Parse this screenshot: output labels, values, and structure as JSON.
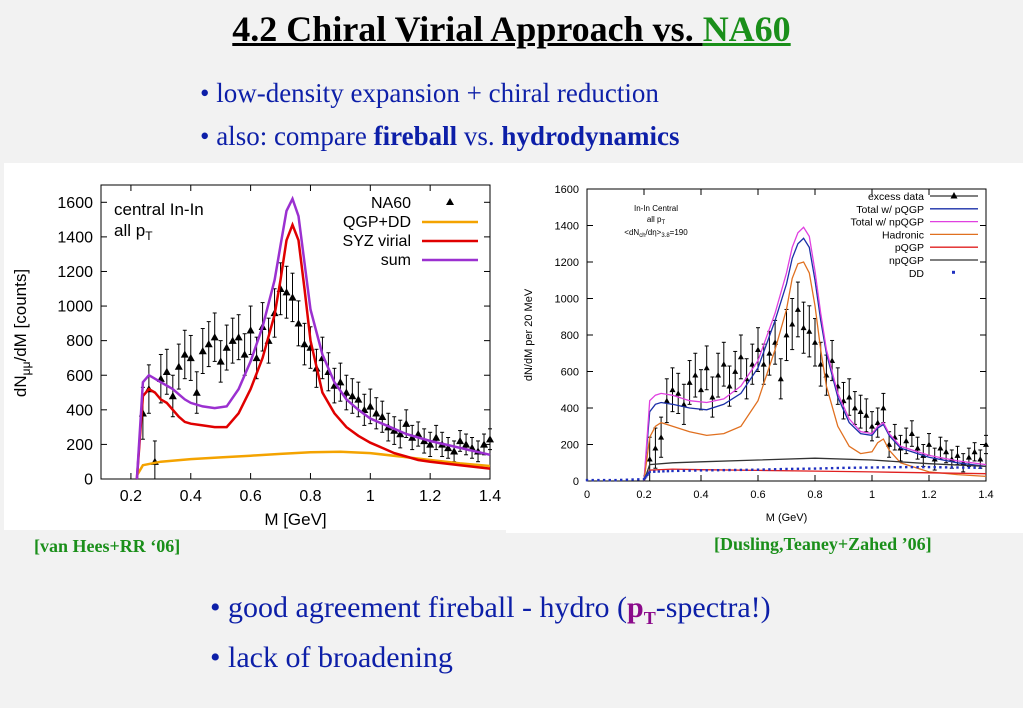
{
  "header": {
    "title_prefix": "4.2  Chiral Virial Approach vs. ",
    "title_highlight": "NA60",
    "bullet1": "• low-density expansion + chiral reduction",
    "bullet2_prefix": "• also: compare ",
    "bullet2_word1": "fireball",
    "bullet2_mid": " vs. ",
    "bullet2_word2": "hydrodynamics"
  },
  "footer": {
    "bullet1_prefix": "• good agreement fireball - hydro (",
    "bullet1_pt_p": "p",
    "bullet1_pt_sub": "T",
    "bullet1_suffix": "-spectra!)",
    "bullet2": "• lack of broadening"
  },
  "colors": {
    "na60": "#000000",
    "qgp_dd": "#f4a300",
    "syz_virial": "#e00000",
    "sum": "#9b30d0",
    "total_pqgp": "#1a2fa8",
    "total_npqgp": "#e040e0",
    "hadronic": "#e07020",
    "pqgp": "#e02020",
    "npqgp": "#333333",
    "dd": "#2030c0",
    "accent_green": "#1a8f1a",
    "bullet_blue": "#0d1fa8"
  },
  "chart_data": [
    {
      "type": "line",
      "citation": "[van Hees+RR ‘06]",
      "annotation_line1": "central In-In",
      "annotation_line2_prefix": "all p",
      "annotation_line2_sub": "T",
      "xlabel": "M [GeV]",
      "ylabel": "dN/dM [counts]",
      "ylabel_main": "dN",
      "ylabel_sub": "μμ",
      "ylabel_rest": "/dM [counts]",
      "xlim": [
        0.1,
        1.4
      ],
      "ylim": [
        0,
        1700
      ],
      "xticks": [
        0.2,
        0.4,
        0.6,
        0.8,
        1,
        1.2,
        1.4
      ],
      "xtick_labels": [
        "0.2",
        "0.4",
        "0.6",
        "0.8",
        "1",
        "1.2",
        "1.4"
      ],
      "yticks": [
        0,
        200,
        400,
        600,
        800,
        1000,
        1200,
        1400,
        1600
      ],
      "ytick_labels": [
        "0",
        "200",
        "400",
        "600",
        "800",
        "1000",
        "1200",
        "1400",
        "1600"
      ],
      "legend_position": "top-right",
      "series": [
        {
          "name": "NA60",
          "kind": "points",
          "x": [
            0.24,
            0.26,
            0.28,
            0.3,
            0.32,
            0.34,
            0.36,
            0.38,
            0.4,
            0.42,
            0.44,
            0.46,
            0.48,
            0.5,
            0.52,
            0.54,
            0.56,
            0.58,
            0.6,
            0.62,
            0.64,
            0.66,
            0.68,
            0.7,
            0.72,
            0.74,
            0.76,
            0.78,
            0.8,
            0.82,
            0.84,
            0.86,
            0.88,
            0.9,
            0.92,
            0.94,
            0.96,
            0.98,
            1.0,
            1.02,
            1.04,
            1.06,
            1.08,
            1.1,
            1.12,
            1.14,
            1.16,
            1.18,
            1.2,
            1.22,
            1.24,
            1.26,
            1.28,
            1.3,
            1.32,
            1.34,
            1.36,
            1.38,
            1.4
          ],
          "y": [
            380,
            520,
            100,
            580,
            620,
            480,
            650,
            720,
            700,
            500,
            740,
            780,
            820,
            680,
            760,
            800,
            820,
            720,
            860,
            700,
            880,
            800,
            960,
            1100,
            1080,
            1050,
            900,
            780,
            760,
            640,
            700,
            620,
            540,
            560,
            500,
            480,
            460,
            400,
            420,
            380,
            360,
            300,
            280,
            260,
            320,
            240,
            260,
            220,
            200,
            240,
            200,
            180,
            160,
            220,
            200,
            180,
            160,
            200,
            230
          ],
          "err": [
            150,
            140,
            120,
            140,
            130,
            120,
            130,
            140,
            130,
            120,
            130,
            130,
            140,
            120,
            130,
            130,
            130,
            120,
            140,
            120,
            140,
            130,
            140,
            150,
            150,
            140,
            130,
            120,
            120,
            110,
            120,
            110,
            100,
            110,
            100,
            100,
            100,
            90,
            100,
            90,
            90,
            80,
            80,
            80,
            80,
            70,
            70,
            70,
            70,
            70,
            70,
            60,
            60,
            60,
            60,
            60,
            60,
            60,
            60
          ]
        },
        {
          "name": "QGP+DD",
          "kind": "line",
          "x": [
            0.22,
            0.24,
            0.3,
            0.4,
            0.5,
            0.6,
            0.7,
            0.8,
            0.9,
            1.0,
            1.1,
            1.2,
            1.3,
            1.4
          ],
          "y": [
            20,
            80,
            100,
            115,
            125,
            135,
            145,
            155,
            158,
            150,
            130,
            110,
            90,
            75
          ]
        },
        {
          "name": "SYZ virial",
          "kind": "line",
          "x": [
            0.22,
            0.24,
            0.26,
            0.28,
            0.3,
            0.32,
            0.34,
            0.36,
            0.38,
            0.4,
            0.44,
            0.48,
            0.52,
            0.56,
            0.6,
            0.64,
            0.68,
            0.7,
            0.72,
            0.74,
            0.76,
            0.78,
            0.8,
            0.84,
            0.88,
            0.92,
            0.96,
            1.0,
            1.04,
            1.08,
            1.12,
            1.16,
            1.2,
            1.3,
            1.4
          ],
          "y": [
            0,
            480,
            520,
            500,
            460,
            440,
            400,
            360,
            330,
            320,
            310,
            300,
            300,
            380,
            520,
            700,
            950,
            1150,
            1380,
            1470,
            1380,
            1100,
            800,
            500,
            380,
            300,
            250,
            210,
            180,
            150,
            130,
            110,
            100,
            80,
            60
          ]
        },
        {
          "name": "sum",
          "kind": "line",
          "x": [
            0.22,
            0.24,
            0.26,
            0.28,
            0.3,
            0.32,
            0.34,
            0.36,
            0.38,
            0.4,
            0.44,
            0.48,
            0.52,
            0.56,
            0.6,
            0.64,
            0.68,
            0.7,
            0.72,
            0.74,
            0.76,
            0.78,
            0.8,
            0.84,
            0.88,
            0.92,
            0.96,
            1.0,
            1.04,
            1.08,
            1.12,
            1.16,
            1.2,
            1.3,
            1.4
          ],
          "y": [
            0,
            560,
            600,
            580,
            560,
            540,
            520,
            490,
            460,
            440,
            420,
            410,
            420,
            520,
            680,
            880,
            1150,
            1350,
            1550,
            1620,
            1520,
            1250,
            980,
            720,
            560,
            460,
            400,
            350,
            320,
            290,
            260,
            240,
            220,
            180,
            140
          ]
        }
      ]
    },
    {
      "type": "line",
      "citation": "[Dusling,Teaney+Zahed ’06]",
      "annotation_line1": "In-In Central",
      "annotation_line2_prefix": "all p",
      "annotation_line2_sub": "T",
      "annotation_line3_prefix": "<dN",
      "annotation_line3_sub1": "ch",
      "annotation_line3_mid": "/dη>",
      "annotation_line3_sub2": "3.8",
      "annotation_line3_suffix": "=190",
      "xlabel": "M (GeV)",
      "ylabel": "dN/dM per 20 MeV",
      "xlim": [
        0,
        1.4
      ],
      "ylim": [
        0,
        1600
      ],
      "xticks": [
        0,
        0.2,
        0.4,
        0.6,
        0.8,
        1,
        1.2,
        1.4
      ],
      "xtick_labels": [
        "0",
        "0.2",
        "0.4",
        "0.6",
        "0.8",
        "1",
        "1.2",
        "1.4"
      ],
      "yticks": [
        0,
        200,
        400,
        600,
        800,
        1000,
        1200,
        1400,
        1600
      ],
      "ytick_labels": [
        "0",
        "200",
        "400",
        "600",
        "800",
        "1000",
        "1200",
        "1400",
        "1600"
      ],
      "legend_position": "top-right",
      "series": [
        {
          "name": "excess data",
          "kind": "points",
          "x": [
            0.22,
            0.24,
            0.26,
            0.28,
            0.3,
            0.32,
            0.34,
            0.36,
            0.38,
            0.4,
            0.42,
            0.44,
            0.46,
            0.48,
            0.5,
            0.52,
            0.54,
            0.56,
            0.58,
            0.6,
            0.62,
            0.64,
            0.66,
            0.68,
            0.7,
            0.72,
            0.74,
            0.76,
            0.78,
            0.8,
            0.82,
            0.84,
            0.86,
            0.88,
            0.9,
            0.92,
            0.94,
            0.96,
            0.98,
            1.0,
            1.02,
            1.04,
            1.06,
            1.08,
            1.1,
            1.12,
            1.14,
            1.16,
            1.18,
            1.2,
            1.22,
            1.24,
            1.26,
            1.28,
            1.3,
            1.32,
            1.34,
            1.36,
            1.38,
            1.4
          ],
          "y": [
            120,
            180,
            240,
            440,
            500,
            480,
            420,
            540,
            580,
            500,
            620,
            460,
            580,
            640,
            520,
            600,
            680,
            560,
            640,
            720,
            640,
            700,
            760,
            560,
            800,
            860,
            940,
            840,
            820,
            760,
            640,
            580,
            660,
            520,
            440,
            460,
            400,
            380,
            360,
            300,
            320,
            400,
            200,
            240,
            180,
            220,
            260,
            180,
            140,
            200,
            120,
            180,
            160,
            120,
            140,
            100,
            130,
            160,
            120,
            200
          ],
          "err": [
            120,
            110,
            110,
            120,
            120,
            110,
            110,
            120,
            120,
            110,
            120,
            110,
            120,
            120,
            110,
            110,
            120,
            110,
            110,
            120,
            110,
            120,
            120,
            110,
            140,
            140,
            150,
            140,
            140,
            130,
            120,
            110,
            110,
            100,
            100,
            100,
            90,
            90,
            90,
            80,
            80,
            80,
            70,
            70,
            70,
            70,
            70,
            60,
            60,
            60,
            60,
            60,
            60,
            50,
            50,
            50,
            50,
            50,
            50,
            50
          ]
        },
        {
          "name": "Total w/ pQGP",
          "kind": "line",
          "x": [
            0.2,
            0.22,
            0.24,
            0.26,
            0.3,
            0.36,
            0.42,
            0.48,
            0.54,
            0.6,
            0.66,
            0.7,
            0.72,
            0.74,
            0.76,
            0.78,
            0.8,
            0.82,
            0.84,
            0.88,
            0.92,
            0.96,
            1.0,
            1.02,
            1.04,
            1.06,
            1.1,
            1.16,
            1.2,
            1.3,
            1.4
          ],
          "y": [
            0,
            380,
            420,
            430,
            420,
            400,
            390,
            420,
            480,
            620,
            880,
            1080,
            1220,
            1300,
            1330,
            1280,
            1100,
            880,
            700,
            460,
            320,
            260,
            250,
            290,
            310,
            250,
            180,
            150,
            130,
            100,
            80
          ]
        },
        {
          "name": "Total w/ npQGP",
          "kind": "line",
          "x": [
            0.2,
            0.22,
            0.24,
            0.26,
            0.3,
            0.36,
            0.42,
            0.48,
            0.54,
            0.6,
            0.66,
            0.7,
            0.72,
            0.74,
            0.76,
            0.78,
            0.8,
            0.82,
            0.84,
            0.88,
            0.92,
            0.96,
            1.0,
            1.02,
            1.04,
            1.06,
            1.1,
            1.16,
            1.2,
            1.3,
            1.4
          ],
          "y": [
            0,
            440,
            470,
            480,
            470,
            440,
            430,
            450,
            520,
            660,
            920,
            1140,
            1280,
            1360,
            1390,
            1340,
            1150,
            920,
            720,
            480,
            340,
            270,
            260,
            300,
            320,
            260,
            190,
            160,
            140,
            110,
            90
          ]
        },
        {
          "name": "Hadronic",
          "kind": "line",
          "x": [
            0.2,
            0.22,
            0.24,
            0.26,
            0.3,
            0.36,
            0.42,
            0.48,
            0.54,
            0.6,
            0.66,
            0.7,
            0.72,
            0.74,
            0.76,
            0.78,
            0.8,
            0.82,
            0.84,
            0.88,
            0.92,
            0.96,
            1.0,
            1.02,
            1.04,
            1.06,
            1.1,
            1.16,
            1.2,
            1.3,
            1.4
          ],
          "y": [
            0,
            240,
            300,
            320,
            300,
            270,
            250,
            260,
            300,
            440,
            720,
            940,
            1110,
            1190,
            1200,
            1140,
            960,
            720,
            520,
            300,
            190,
            150,
            160,
            210,
            230,
            170,
            100,
            70,
            50,
            35,
            25
          ]
        },
        {
          "name": "pQGP",
          "kind": "line",
          "x": [
            0.2,
            0.22,
            0.3,
            0.4,
            0.6,
            0.8,
            1.0,
            1.2,
            1.4
          ],
          "y": [
            0,
            60,
            65,
            62,
            58,
            54,
            50,
            45,
            40
          ]
        },
        {
          "name": "npQGP",
          "kind": "line",
          "x": [
            0.2,
            0.22,
            0.3,
            0.4,
            0.6,
            0.8,
            1.0,
            1.2,
            1.4
          ],
          "y": [
            0,
            90,
            100,
            105,
            115,
            125,
            115,
            95,
            80
          ]
        },
        {
          "name": "DD",
          "kind": "dots",
          "x": [
            0,
            0.1,
            0.2,
            0.22,
            0.3,
            0.4,
            0.5,
            0.6,
            0.7,
            0.8,
            0.9,
            1.0,
            1.1,
            1.2,
            1.3,
            1.4
          ],
          "y": [
            5,
            5,
            10,
            50,
            55,
            58,
            60,
            62,
            66,
            68,
            72,
            74,
            76,
            76,
            74,
            72
          ]
        }
      ]
    }
  ]
}
